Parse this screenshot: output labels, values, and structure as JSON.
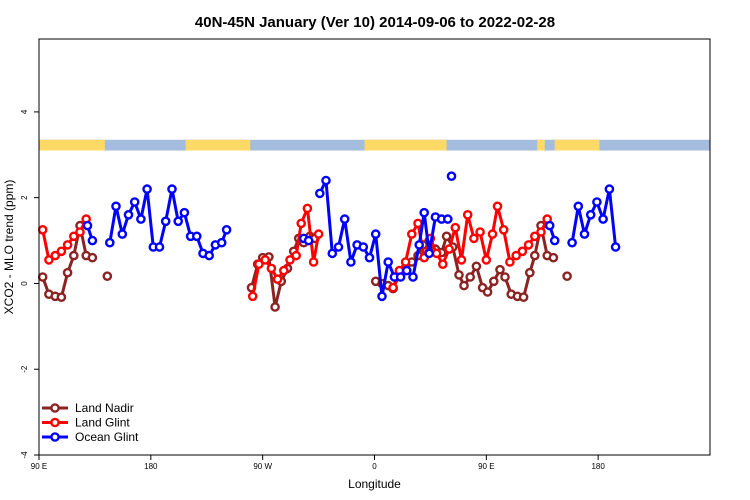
{
  "chart_data": {
    "type": "line",
    "title": "40N-45N January (Ver 10)   2014-09-06 to 2022-02-28",
    "xlabel": "Longitude",
    "ylabel": "XCO2 - MLO trend (ppm)",
    "xlim": [
      90,
      630
    ],
    "ylim": [
      -4,
      5.7
    ],
    "x_ticks": [
      {
        "value": 90,
        "label": "90 E"
      },
      {
        "value": 180,
        "label": "180"
      },
      {
        "value": 270,
        "label": "90 W"
      },
      {
        "value": 360,
        "label": "0"
      },
      {
        "value": 450,
        "label": "90 E"
      },
      {
        "value": 540,
        "label": "180"
      }
    ],
    "y_ticks": [
      {
        "value": -4,
        "label": "-4"
      },
      {
        "value": -2,
        "label": "-2"
      },
      {
        "value": 0,
        "label": "0"
      },
      {
        "value": 2,
        "label": "2"
      },
      {
        "value": 4,
        "label": "4"
      }
    ],
    "legend_position": "bottom-left",
    "surface_strip": {
      "y_bottom": 3.1,
      "y_top": 3.35,
      "land_color": "#ffd966",
      "ocean_color": "#a4bcdd",
      "land_segments": [
        [
          90,
          143
        ],
        [
          208,
          260
        ],
        [
          352,
          418
        ],
        [
          491,
          497
        ],
        [
          505,
          541
        ]
      ]
    },
    "series": [
      {
        "name": "Land Nadir",
        "color": "#8b2323",
        "segments": [
          [
            [
              93,
              0.15
            ],
            [
              98,
              -0.25
            ],
            [
              103,
              -0.3
            ],
            [
              108,
              -0.32
            ],
            [
              113,
              0.25
            ],
            [
              118,
              0.65
            ],
            [
              123,
              1.35
            ],
            [
              128,
              0.65
            ],
            [
              133,
              0.6
            ]
          ],
          [
            [
              145,
              0.17
            ]
          ],
          [
            [
              261,
              -0.1
            ],
            [
              266,
              0.45
            ],
            [
              270,
              0.6
            ],
            [
              275,
              0.62
            ],
            [
              280,
              -0.55
            ],
            [
              285,
              0.05
            ],
            [
              290,
              0.35
            ],
            [
              295,
              0.75
            ],
            [
              299,
              1.05
            ],
            [
              303,
              0.95
            ],
            [
              308,
              1.1
            ],
            [
              312,
              1.05
            ]
          ],
          [
            [
              361,
              0.05
            ],
            [
              366,
              0.0
            ],
            [
              371,
              -0.05
            ],
            [
              375,
              -0.12
            ],
            [
              380,
              0.2
            ],
            [
              385,
              0.3
            ],
            [
              390,
              0.5
            ],
            [
              395,
              0.65
            ],
            [
              399,
              0.9
            ],
            [
              404,
              1.0
            ],
            [
              409,
              0.8
            ],
            [
              414,
              0.72
            ],
            [
              418,
              1.1
            ],
            [
              423,
              0.85
            ],
            [
              428,
              0.2
            ],
            [
              432,
              -0.05
            ],
            [
              437,
              0.15
            ],
            [
              442,
              0.4
            ],
            [
              447,
              -0.1
            ],
            [
              451,
              -0.2
            ],
            [
              456,
              0.05
            ],
            [
              461,
              0.32
            ],
            [
              465,
              0.15
            ],
            [
              470,
              -0.25
            ],
            [
              475,
              -0.3
            ],
            [
              480,
              -0.32
            ],
            [
              485,
              0.25
            ],
            [
              489,
              0.65
            ],
            [
              494,
              1.35
            ],
            [
              499,
              0.65
            ],
            [
              504,
              0.6
            ]
          ],
          [
            [
              515,
              0.17
            ]
          ]
        ]
      },
      {
        "name": "Land Glint",
        "color": "#ff0000",
        "segments": [
          [
            [
              93,
              1.25
            ],
            [
              98,
              0.55
            ],
            [
              103,
              0.65
            ],
            [
              108,
              0.75
            ],
            [
              113,
              0.9
            ],
            [
              118,
              1.1
            ],
            [
              123,
              1.2
            ],
            [
              128,
              1.5
            ]
          ],
          [
            [
              262,
              -0.3
            ],
            [
              267,
              0.45
            ],
            [
              272,
              0.55
            ],
            [
              277,
              0.35
            ],
            [
              282,
              0.1
            ],
            [
              287,
              0.3
            ],
            [
              292,
              0.55
            ],
            [
              297,
              0.65
            ],
            [
              301,
              1.4
            ],
            [
              306,
              1.75
            ],
            [
              311,
              0.5
            ],
            [
              315,
              1.15
            ]
          ],
          [
            [
              375,
              -0.1
            ],
            [
              380,
              0.3
            ],
            [
              385,
              0.5
            ],
            [
              390,
              1.15
            ],
            [
              395,
              1.4
            ],
            [
              400,
              0.6
            ],
            [
              405,
              1.05
            ],
            [
              410,
              0.7
            ],
            [
              415,
              0.45
            ],
            [
              420,
              0.8
            ],
            [
              425,
              1.3
            ],
            [
              430,
              0.55
            ],
            [
              435,
              1.6
            ],
            [
              440,
              1.05
            ],
            [
              445,
              1.2
            ],
            [
              450,
              0.55
            ],
            [
              455,
              1.15
            ],
            [
              459,
              1.8
            ],
            [
              464,
              1.25
            ],
            [
              469,
              0.5
            ],
            [
              474,
              0.65
            ],
            [
              479,
              0.75
            ],
            [
              484,
              0.9
            ],
            [
              489,
              1.1
            ],
            [
              494,
              1.2
            ],
            [
              499,
              1.5
            ]
          ]
        ]
      },
      {
        "name": "Ocean Glint",
        "color": "#0000ff",
        "segments": [
          [
            [
              129,
              1.35
            ],
            [
              133,
              1.0
            ]
          ],
          [
            [
              147,
              0.95
            ],
            [
              152,
              1.8
            ],
            [
              157,
              1.15
            ],
            [
              162,
              1.6
            ],
            [
              167,
              1.9
            ],
            [
              172,
              1.5
            ],
            [
              177,
              2.2
            ],
            [
              182,
              0.85
            ],
            [
              187,
              0.85
            ],
            [
              192,
              1.45
            ],
            [
              197,
              2.2
            ],
            [
              202,
              1.45
            ],
            [
              207,
              1.65
            ],
            [
              212,
              1.1
            ],
            [
              217,
              1.1
            ],
            [
              222,
              0.7
            ],
            [
              227,
              0.65
            ],
            [
              232,
              0.9
            ],
            [
              237,
              0.95
            ],
            [
              241,
              1.25
            ]
          ],
          [
            [
              303,
              1.05
            ],
            [
              307,
              1.0
            ]
          ],
          [
            [
              316,
              2.1
            ],
            [
              321,
              2.4
            ],
            [
              326,
              0.7
            ],
            [
              331,
              0.85
            ],
            [
              336,
              1.5
            ],
            [
              341,
              0.5
            ],
            [
              346,
              0.9
            ],
            [
              351,
              0.85
            ],
            [
              356,
              0.6
            ],
            [
              361,
              1.15
            ],
            [
              366,
              -0.3
            ],
            [
              371,
              0.5
            ],
            [
              376,
              0.15
            ],
            [
              381,
              0.15
            ],
            [
              386,
              0.3
            ],
            [
              391,
              0.15
            ],
            [
              396,
              0.9
            ],
            [
              400,
              1.65
            ],
            [
              404,
              0.7
            ],
            [
              409,
              1.55
            ],
            [
              414,
              1.5
            ],
            [
              419,
              1.5
            ]
          ],
          [
            [
              422,
              2.5
            ]
          ],
          [
            [
              501,
              1.35
            ],
            [
              505,
              1.0
            ]
          ],
          [
            [
              519,
              0.95
            ],
            [
              524,
              1.8
            ],
            [
              529,
              1.15
            ],
            [
              534,
              1.6
            ],
            [
              539,
              1.9
            ],
            [
              544,
              1.5
            ],
            [
              549,
              2.2
            ],
            [
              554,
              0.85
            ]
          ]
        ]
      }
    ]
  }
}
